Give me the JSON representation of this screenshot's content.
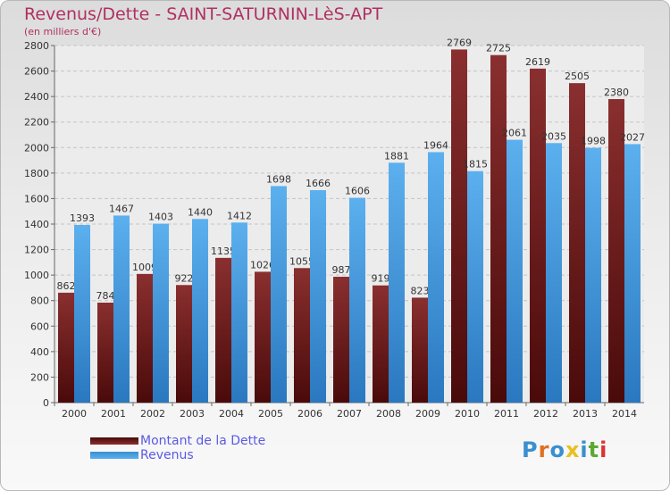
{
  "title": "Revenus/Dette - SAINT-SATURNIN-LèS-APT",
  "subtitle": "(en milliers d'€)",
  "legend": {
    "debt": "Montant de la Dette",
    "revenue": "Revenus"
  },
  "logo": {
    "text": "Proxiti",
    "colors": [
      "#3a8fd0",
      "#e07020",
      "#3a8fd0",
      "#e8c020",
      "#3a8fd0",
      "#5aaa30",
      "#e03030"
    ]
  },
  "colors": {
    "debt_top": "#8a2f2f",
    "debt_bottom": "#4a0a0a",
    "revenue_top": "#5cb0ee",
    "revenue_bottom": "#2a78c0",
    "label": "#333333"
  },
  "chart_data": {
    "type": "bar",
    "categories": [
      "2000",
      "2001",
      "2002",
      "2003",
      "2004",
      "2005",
      "2006",
      "2007",
      "2008",
      "2009",
      "2010",
      "2011",
      "2012",
      "2013",
      "2014"
    ],
    "series": [
      {
        "name": "Montant de la Dette",
        "values": [
          862,
          784,
          1009,
          922,
          1135,
          1026,
          1055,
          987,
          919,
          823,
          2769,
          2725,
          2619,
          2505,
          2380
        ]
      },
      {
        "name": "Revenus",
        "values": [
          1393,
          1467,
          1403,
          1440,
          1412,
          1698,
          1666,
          1606,
          1881,
          1964,
          1815,
          2061,
          2035,
          1998,
          2027
        ]
      }
    ],
    "ylim": [
      0,
      2800
    ],
    "yticks": [
      0,
      200,
      400,
      600,
      800,
      1000,
      1200,
      1400,
      1600,
      1800,
      2000,
      2200,
      2400,
      2600,
      2800
    ],
    "grid": true,
    "legend_position": "bottom-left"
  }
}
